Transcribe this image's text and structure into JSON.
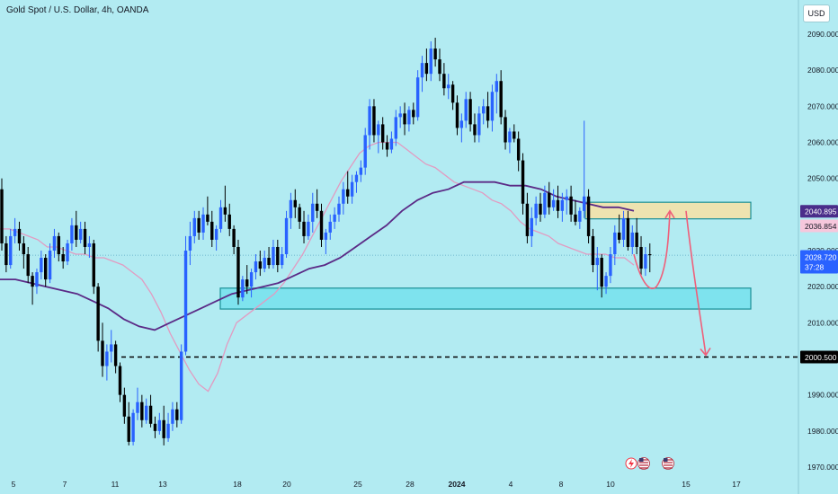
{
  "header": {
    "symbol_title": "Gold Spot / U.S. Dollar, 4h, OANDA",
    "currency": "USD"
  },
  "chart_data": {
    "type": "candlestick",
    "title": "Gold Spot / U.S. Dollar, 4h, OANDA",
    "ylim": [
      1965,
      2095
    ],
    "y_ticks": [
      1970,
      1980,
      1990,
      2000,
      2010,
      2020,
      2030,
      2040,
      2050,
      2060,
      2070,
      2080,
      2090
    ],
    "y_tick_labels": [
      "1970.000",
      "1980.000",
      "1990.000",
      "2000.000",
      "2010.000",
      "2020.000",
      "2030.000",
      "2040.000",
      "2050.000",
      "2060.000",
      "2070.000",
      "2080.000",
      "2090.000"
    ],
    "x_tick_labels": [
      "5",
      "7",
      "11",
      "13",
      "18",
      "20",
      "25",
      "28",
      "2024",
      "4",
      "8",
      "10",
      "15",
      "17"
    ],
    "grid": false,
    "candles": [
      [
        2047,
        2050,
        2030,
        2032
      ],
      [
        2032,
        2034,
        2024,
        2026
      ],
      [
        2026,
        2036,
        2025,
        2034
      ],
      [
        2034,
        2039,
        2032,
        2036
      ],
      [
        2036,
        2038,
        2030,
        2032
      ],
      [
        2032,
        2034,
        2025,
        2029
      ],
      [
        2029,
        2031,
        2021,
        2023
      ],
      [
        2023,
        2024,
        2015,
        2020
      ],
      [
        2020,
        2025,
        2018,
        2024
      ],
      [
        2024,
        2030,
        2022,
        2028
      ],
      [
        2028,
        2029,
        2020,
        2022
      ],
      [
        2022,
        2032,
        2021,
        2030
      ],
      [
        2030,
        2036,
        2028,
        2034
      ],
      [
        2034,
        2035,
        2027,
        2029
      ],
      [
        2029,
        2031,
        2025,
        2027
      ],
      [
        2027,
        2033,
        2026,
        2032
      ],
      [
        2032,
        2039,
        2030,
        2037
      ],
      [
        2037,
        2041,
        2031,
        2033
      ],
      [
        2033,
        2038,
        2032,
        2036
      ],
      [
        2036,
        2038,
        2029,
        2031
      ],
      [
        2031,
        2034,
        2028,
        2032
      ],
      [
        2032,
        2033,
        2018,
        2020
      ],
      [
        2020,
        2021,
        2002,
        2005
      ],
      [
        2005,
        2010,
        1995,
        1998
      ],
      [
        1998,
        2004,
        1994,
        2002
      ],
      [
        2002,
        2008,
        1999,
        2004
      ],
      [
        2004,
        2005,
        1996,
        1998
      ],
      [
        1998,
        1999,
        1988,
        1990
      ],
      [
        1990,
        1992,
        1982,
        1984
      ],
      [
        1984,
        1988,
        1976,
        1977
      ],
      [
        1977,
        1986,
        1976,
        1985
      ],
      [
        1985,
        1992,
        1983,
        1988
      ],
      [
        1988,
        1990,
        1981,
        1983
      ],
      [
        1983,
        1989,
        1982,
        1987
      ],
      [
        1987,
        1990,
        1981,
        1982
      ],
      [
        1982,
        1984,
        1978,
        1980
      ],
      [
        1980,
        1985,
        1979,
        1983
      ],
      [
        1983,
        1987,
        1976,
        1978
      ],
      [
        1978,
        1985,
        1977,
        1982
      ],
      [
        1982,
        1988,
        1980,
        1986
      ],
      [
        1986,
        1988,
        1981,
        1983
      ],
      [
        1983,
        2004,
        1982,
        2002
      ],
      [
        2002,
        2034,
        2001,
        2030
      ],
      [
        2030,
        2038,
        2026,
        2034
      ],
      [
        2034,
        2041,
        2032,
        2039
      ],
      [
        2039,
        2041,
        2033,
        2035
      ],
      [
        2035,
        2042,
        2033,
        2040
      ],
      [
        2040,
        2045,
        2037,
        2038
      ],
      [
        2038,
        2041,
        2031,
        2033
      ],
      [
        2033,
        2037,
        2030,
        2036
      ],
      [
        2036,
        2044,
        2035,
        2042
      ],
      [
        2042,
        2048,
        2038,
        2040
      ],
      [
        2040,
        2043,
        2034,
        2036
      ],
      [
        2036,
        2037,
        2029,
        2031
      ],
      [
        2031,
        2033,
        2015,
        2017
      ],
      [
        2017,
        2023,
        2016,
        2022
      ],
      [
        2022,
        2026,
        2018,
        2020
      ],
      [
        2020,
        2025,
        2017,
        2024
      ],
      [
        2024,
        2029,
        2022,
        2027
      ],
      [
        2027,
        2030,
        2023,
        2025
      ],
      [
        2025,
        2030,
        2024,
        2028
      ],
      [
        2028,
        2031,
        2025,
        2026
      ],
      [
        2026,
        2033,
        2025,
        2031
      ],
      [
        2031,
        2033,
        2024,
        2026
      ],
      [
        2026,
        2031,
        2025,
        2029
      ],
      [
        2029,
        2041,
        2028,
        2039
      ],
      [
        2039,
        2046,
        2036,
        2044
      ],
      [
        2044,
        2047,
        2039,
        2042
      ],
      [
        2042,
        2043,
        2036,
        2038
      ],
      [
        2038,
        2041,
        2032,
        2034
      ],
      [
        2034,
        2040,
        2033,
        2038
      ],
      [
        2038,
        2046,
        2035,
        2043
      ],
      [
        2043,
        2047,
        2039,
        2041
      ],
      [
        2041,
        2043,
        2031,
        2033
      ],
      [
        2033,
        2036,
        2029,
        2035
      ],
      [
        2035,
        2040,
        2033,
        2038
      ],
      [
        2038,
        2042,
        2036,
        2040
      ],
      [
        2040,
        2045,
        2038,
        2043
      ],
      [
        2043,
        2049,
        2040,
        2047
      ],
      [
        2047,
        2052,
        2043,
        2045
      ],
      [
        2045,
        2051,
        2043,
        2049
      ],
      [
        2049,
        2052,
        2046,
        2051
      ],
      [
        2051,
        2055,
        2049,
        2053
      ],
      [
        2053,
        2064,
        2051,
        2062
      ],
      [
        2062,
        2072,
        2058,
        2070
      ],
      [
        2070,
        2072,
        2060,
        2062
      ],
      [
        2062,
        2066,
        2057,
        2065
      ],
      [
        2065,
        2067,
        2058,
        2060
      ],
      [
        2060,
        2062,
        2056,
        2058
      ],
      [
        2058,
        2063,
        2057,
        2061
      ],
      [
        2061,
        2069,
        2059,
        2067
      ],
      [
        2067,
        2070,
        2064,
        2068
      ],
      [
        2068,
        2071,
        2062,
        2065
      ],
      [
        2065,
        2070,
        2063,
        2069
      ],
      [
        2069,
        2071,
        2065,
        2067
      ],
      [
        2067,
        2080,
        2066,
        2078
      ],
      [
        2078,
        2084,
        2074,
        2082
      ],
      [
        2082,
        2086,
        2077,
        2079
      ],
      [
        2079,
        2088,
        2077,
        2086
      ],
      [
        2086,
        2089,
        2081,
        2083
      ],
      [
        2083,
        2086,
        2077,
        2079
      ],
      [
        2079,
        2082,
        2073,
        2075
      ],
      [
        2075,
        2079,
        2072,
        2076
      ],
      [
        2076,
        2077,
        2069,
        2071
      ],
      [
        2071,
        2073,
        2062,
        2064
      ],
      [
        2064,
        2068,
        2060,
        2066
      ],
      [
        2066,
        2074,
        2064,
        2072
      ],
      [
        2072,
        2074,
        2063,
        2065
      ],
      [
        2065,
        2068,
        2060,
        2062
      ],
      [
        2062,
        2070,
        2060,
        2068
      ],
      [
        2068,
        2072,
        2065,
        2070
      ],
      [
        2070,
        2074,
        2064,
        2066
      ],
      [
        2066,
        2076,
        2063,
        2074
      ],
      [
        2074,
        2079,
        2068,
        2077
      ],
      [
        2077,
        2080,
        2065,
        2067
      ],
      [
        2067,
        2069,
        2058,
        2060
      ],
      [
        2060,
        2064,
        2057,
        2063
      ],
      [
        2063,
        2065,
        2060,
        2061
      ],
      [
        2061,
        2063,
        2052,
        2055
      ],
      [
        2055,
        2057,
        2040,
        2043
      ],
      [
        2043,
        2046,
        2032,
        2034
      ],
      [
        2034,
        2042,
        2031,
        2039
      ],
      [
        2039,
        2045,
        2037,
        2043
      ],
      [
        2043,
        2046,
        2038,
        2040
      ],
      [
        2040,
        2048,
        2039,
        2046
      ],
      [
        2046,
        2049,
        2040,
        2042
      ],
      [
        2042,
        2047,
        2041,
        2044
      ],
      [
        2044,
        2048,
        2039,
        2041
      ],
      [
        2041,
        2046,
        2038,
        2044
      ],
      [
        2044,
        2047,
        2040,
        2045
      ],
      [
        2045,
        2048,
        2038,
        2040
      ],
      [
        2040,
        2044,
        2037,
        2038
      ],
      [
        2038,
        2042,
        2036,
        2041
      ],
      [
        2041,
        2066,
        2039,
        2045
      ],
      [
        2045,
        2047,
        2032,
        2034
      ],
      [
        2034,
        2036,
        2024,
        2026
      ],
      [
        2026,
        2031,
        2019,
        2028
      ],
      [
        2028,
        2029,
        2017,
        2020
      ],
      [
        2020,
        2024,
        2018,
        2023
      ],
      [
        2023,
        2031,
        2021,
        2029
      ],
      [
        2029,
        2037,
        2026,
        2035
      ],
      [
        2035,
        2040,
        2032,
        2033
      ],
      [
        2033,
        2041,
        2031,
        2039
      ],
      [
        2039,
        2041,
        2030,
        2031
      ],
      [
        2031,
        2037,
        2029,
        2035
      ],
      [
        2035,
        2039,
        2029,
        2031
      ],
      [
        2031,
        2034,
        2023,
        2025
      ],
      [
        2025,
        2031,
        2023,
        2029
      ],
      [
        2029,
        2032,
        2024,
        2028.72
      ]
    ],
    "series": [
      {
        "values": [
          2036,
          2036,
          2035,
          2034,
          2033,
          2031,
          2031,
          2030,
          2029,
          2029,
          2028,
          2028,
          2027,
          2026,
          2024,
          2022,
          2018,
          2013,
          2007,
          2002,
          1997,
          1993,
          1991,
          1996,
          2004,
          2010,
          2012,
          2014,
          2016,
          2018,
          2021,
          2025,
          2029,
          2034,
          2039,
          2044,
          2049,
          2053,
          2057,
          2059,
          2060,
          2060,
          2060,
          2058,
          2056,
          2054,
          2053,
          2051,
          2049,
          2048,
          2047,
          2046,
          2044,
          2043,
          2041,
          2038,
          2036,
          2035,
          2034,
          2032,
          2031,
          2030,
          2029,
          2029,
          2029,
          2028,
          2028,
          2026
        ]
      },
      {
        "values": [
          2022,
          2022,
          2021,
          2020,
          2019,
          2018,
          2016,
          2014,
          2011,
          2009,
          2008,
          2010,
          2012,
          2014,
          2016,
          2018,
          2019,
          2020,
          2021,
          2023,
          2025,
          2026,
          2028,
          2031,
          2034,
          2037,
          2041,
          2044,
          2046,
          2047,
          2049,
          2049,
          2049,
          2048,
          2048,
          2047,
          2045,
          2044,
          2043,
          2042,
          2042,
          2041
        ]
      }
    ],
    "annotations": [
      {
        "text": "2040.895"
      },
      {
        "text": "2036.854"
      },
      {
        "text": "2028.720"
      },
      {
        "text": "37:28"
      },
      {
        "text": "2000.500"
      }
    ],
    "zones": [
      {
        "from": 2038.8,
        "to": 2043.4
      },
      {
        "from": 2013.8,
        "to": 2019.6
      }
    ],
    "horizontal_levels": [
      2000.5,
      2028.72
    ],
    "colors": {
      "background": "#b2ebf2",
      "up": "#2962ff",
      "down": "#000000",
      "ma_fast": "#e29bc1",
      "ma_slow": "#5b2a86",
      "arrow": "#ef5f7a",
      "supply_zone": "#eee3b0",
      "demand_zone": "#7ee3ee"
    }
  }
}
